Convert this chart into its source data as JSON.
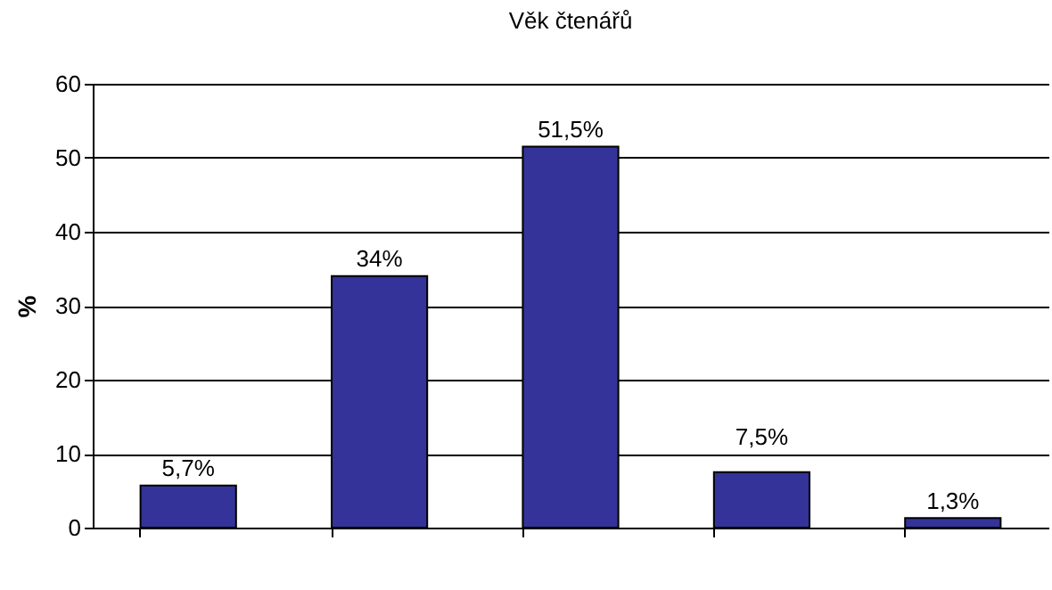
{
  "chart_data": {
    "type": "bar",
    "title": "Věk čtenářů",
    "ylabel": "%",
    "categories": [
      null,
      null,
      null,
      null,
      null
    ],
    "values": [
      5.7,
      34,
      51.5,
      7.5,
      1.3
    ],
    "value_labels": [
      "5,7%",
      "34%",
      "51,5%",
      "7,5%",
      "1,3%"
    ],
    "color": "#333399",
    "ylim": [
      0,
      60
    ],
    "yticks": [
      0,
      10,
      20,
      30,
      40,
      50,
      60
    ],
    "grid": "y"
  }
}
